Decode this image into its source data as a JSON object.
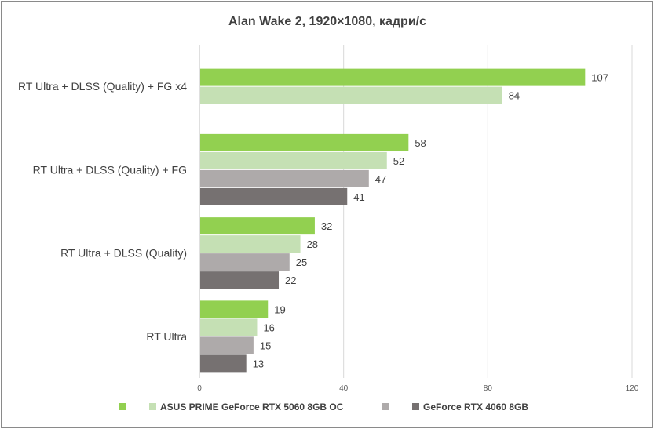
{
  "chart_data": {
    "type": "bar",
    "orientation": "horizontal",
    "title": "Alan Wake 2, 1920×1080, кадри/с",
    "xlabel": "",
    "ylabel": "",
    "xlim": [
      0,
      120
    ],
    "x_ticks": [
      "0",
      "40",
      "80",
      "120"
    ],
    "grid": true,
    "legend_position": "bottom",
    "categories": [
      "RT Ultra + DLSS (Quality) + FG x4",
      "RT Ultra + DLSS (Quality) + FG",
      "RT Ultra + DLSS (Quality)",
      "RT Ultra"
    ],
    "series": [
      {
        "name": "",
        "color": "#92d050",
        "values": [
          107,
          58,
          32,
          19
        ]
      },
      {
        "name": "ASUS PRIME GeForce RTX 5060 8GB OC",
        "color": "#c5e0b4",
        "values": [
          84,
          52,
          28,
          16
        ]
      },
      {
        "name": "",
        "color": "#aeaaaa",
        "values": [
          null,
          47,
          25,
          15
        ]
      },
      {
        "name": "GeForce RTX 4060 8GB",
        "color": "#767171",
        "values": [
          null,
          41,
          22,
          13
        ]
      }
    ]
  }
}
